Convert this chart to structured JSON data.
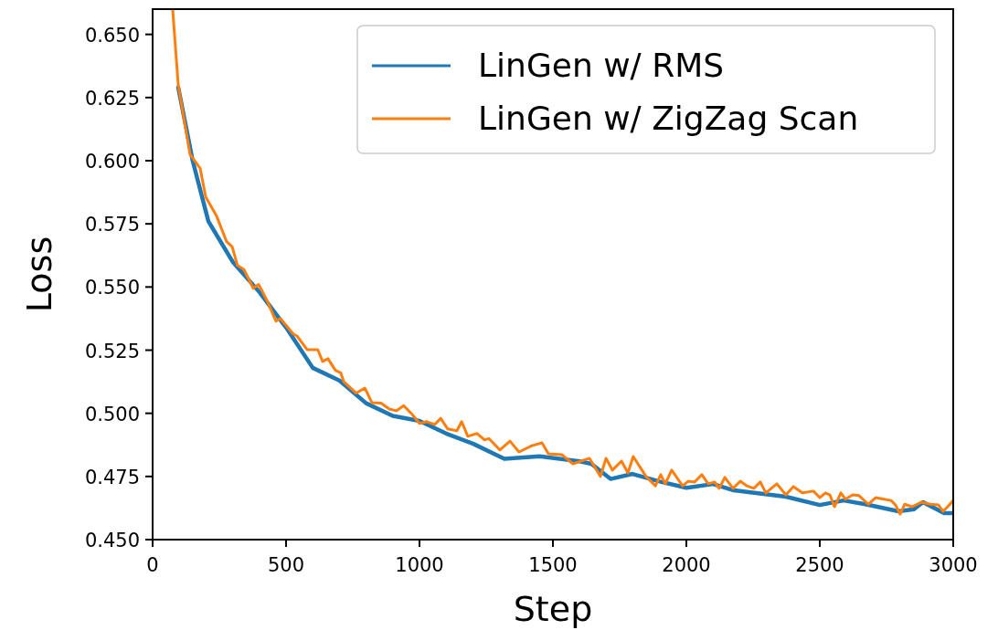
{
  "chart_data": {
    "type": "line",
    "xlabel": "Step",
    "ylabel": "Loss",
    "xlim": [
      0,
      3000
    ],
    "ylim": [
      0.45,
      0.66
    ],
    "xticks": [
      0,
      500,
      1000,
      1500,
      2000,
      2500,
      3000
    ],
    "yticks": [
      {
        "value": 0.45,
        "label": "0.450"
      },
      {
        "value": 0.475,
        "label": "0.475"
      },
      {
        "value": 0.5,
        "label": "0.500"
      },
      {
        "value": 0.525,
        "label": "0.525"
      },
      {
        "value": 0.55,
        "label": "0.550"
      },
      {
        "value": 0.575,
        "label": "0.575"
      },
      {
        "value": 0.6,
        "label": "0.600"
      },
      {
        "value": 0.625,
        "label": "0.625"
      },
      {
        "value": 0.65,
        "label": "0.650"
      }
    ],
    "grid": false,
    "legend": "top right",
    "line_style": "solid",
    "marker": "none",
    "series": [
      {
        "name": "LinGen w/ RMS",
        "color": "#1f77b4",
        "x": [
          96,
          150,
          209,
          300,
          400,
          500,
          600,
          700,
          800,
          900,
          1000,
          1100,
          1200,
          1318,
          1450,
          1600,
          1644,
          1716,
          1798,
          1900,
          2000,
          2100,
          2178,
          2373,
          2500,
          2589,
          2671,
          2795,
          2853,
          2887,
          2966,
          3000
        ],
        "values": [
          0.629,
          0.6,
          0.576,
          0.56,
          0.548,
          0.534,
          0.518,
          0.513,
          0.504,
          0.499,
          0.497,
          0.492,
          0.488,
          0.482,
          0.483,
          0.481,
          0.48,
          0.474,
          0.476,
          0.473,
          0.4705,
          0.472,
          0.4695,
          0.467,
          0.4637,
          0.4655,
          0.464,
          0.4612,
          0.462,
          0.4648,
          0.4605,
          0.4605
        ]
      },
      {
        "name": "LinGen w/ ZigZag Scan",
        "color": "#ff7f0e",
        "x": [
          75,
          96,
          140,
          178,
          199,
          240,
          277,
          298,
          318,
          342,
          377,
          397,
          428,
          462,
          479,
          527,
          541,
          579,
          619,
          637,
          657,
          685,
          705,
          716,
          763,
          795,
          822,
          856,
          887,
          913,
          941,
          973,
          1000,
          1027,
          1058,
          1079,
          1106,
          1140,
          1158,
          1181,
          1216,
          1243,
          1260,
          1301,
          1339,
          1373,
          1421,
          1459,
          1483,
          1534,
          1575,
          1637,
          1678,
          1699,
          1723,
          1757,
          1781,
          1801,
          1849,
          1884,
          1904,
          1921,
          1945,
          1986,
          2007,
          2031,
          2058,
          2082,
          2106,
          2123,
          2144,
          2175,
          2202,
          2226,
          2253,
          2277,
          2298,
          2339,
          2373,
          2401,
          2435,
          2476,
          2500,
          2521,
          2538,
          2555,
          2579,
          2596,
          2623,
          2647,
          2682,
          2709,
          2740,
          2767,
          2784,
          2801,
          2818,
          2846,
          2880,
          2914,
          2945,
          2962,
          2979,
          3000
        ],
        "values": [
          0.66,
          0.63,
          0.6026,
          0.597,
          0.5856,
          0.578,
          0.568,
          0.566,
          0.5585,
          0.557,
          0.5495,
          0.551,
          0.5448,
          0.5365,
          0.5375,
          0.5314,
          0.5306,
          0.5252,
          0.5252,
          0.5205,
          0.5216,
          0.517,
          0.516,
          0.5126,
          0.508,
          0.51,
          0.5042,
          0.504,
          0.5017,
          0.501,
          0.503,
          0.4995,
          0.496,
          0.4967,
          0.4956,
          0.498,
          0.4938,
          0.4931,
          0.4967,
          0.4909,
          0.492,
          0.4895,
          0.49,
          0.4855,
          0.489,
          0.4847,
          0.4872,
          0.4883,
          0.484,
          0.4836,
          0.48,
          0.4822,
          0.475,
          0.4822,
          0.4775,
          0.4811,
          0.4764,
          0.4829,
          0.475,
          0.4713,
          0.4757,
          0.4721,
          0.4775,
          0.4713,
          0.4731,
          0.4728,
          0.4757,
          0.4721,
          0.4728,
          0.4703,
          0.4746,
          0.4703,
          0.4731,
          0.4713,
          0.4703,
          0.4728,
          0.4685,
          0.4721,
          0.4677,
          0.471,
          0.4685,
          0.4692,
          0.4666,
          0.4685,
          0.4677,
          0.463,
          0.4685,
          0.466,
          0.4677,
          0.4674,
          0.464,
          0.4666,
          0.466,
          0.4655,
          0.4637,
          0.4601,
          0.464,
          0.463,
          0.4648,
          0.464,
          0.4637,
          0.4612,
          0.463,
          0.4655
        ]
      }
    ]
  }
}
